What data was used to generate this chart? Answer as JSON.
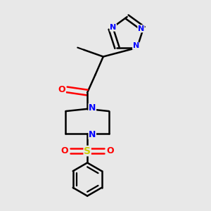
{
  "bg_color": "#e8e8e8",
  "bond_color": "#000000",
  "N_color": "#0000ff",
  "O_color": "#ff0000",
  "S_color": "#cccc00",
  "line_width": 1.8,
  "fig_size": [
    3.0,
    3.0
  ],
  "dpi": 100,
  "xlim": [
    0.2,
    0.8
  ],
  "ylim": [
    0.05,
    0.97
  ]
}
